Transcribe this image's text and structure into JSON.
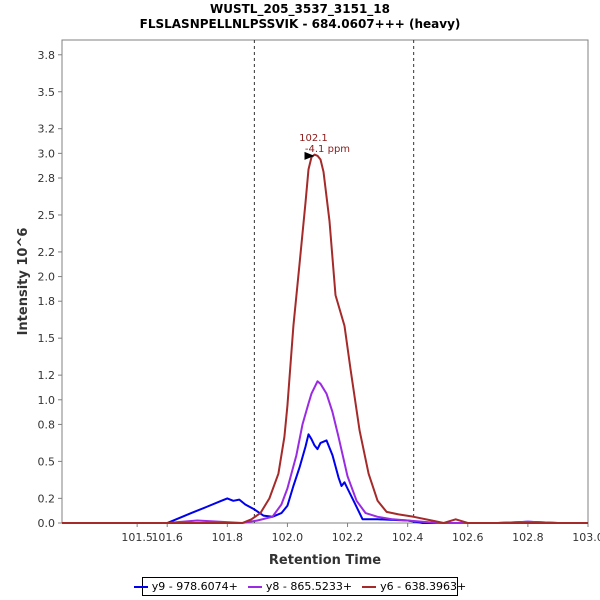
{
  "chart_data": {
    "type": "line",
    "title": "WUSTL_205_3537_3151_18",
    "subtitle": "FLSLASNPELLNLPSSVIK - 684.0607+++ (heavy)",
    "xlabel": "Retention Time",
    "ylabel": "Intensity 10^6",
    "xlim": [
      101.25,
      103.0
    ],
    "ylim": [
      0.0,
      3.92
    ],
    "x_ticks": [
      "101.5",
      "101.6",
      "101.8",
      "102.0",
      "102.2",
      "102.4",
      "102.6",
      "102.8",
      "103.0"
    ],
    "x_tick_values": [
      101.5,
      101.6,
      101.8,
      102.0,
      102.2,
      102.4,
      102.6,
      102.8,
      103.0
    ],
    "y_ticks": [
      "0.0",
      "0.2",
      "0.5",
      "0.8",
      "1.0",
      "1.2",
      "1.5",
      "1.8",
      "2.0",
      "2.2",
      "2.5",
      "2.8",
      "3.0",
      "3.2",
      "3.5",
      "3.8"
    ],
    "y_tick_values": [
      0.0,
      0.2,
      0.5,
      0.8,
      1.0,
      1.2,
      1.5,
      1.8,
      2.0,
      2.2,
      2.5,
      2.8,
      3.0,
      3.2,
      3.5,
      3.8
    ],
    "integration_bounds": [
      101.89,
      102.42
    ],
    "peak_annotation": {
      "x": 102.1,
      "y": 2.98,
      "label_rt": "102.1",
      "label_ppm": "-4.1 ppm"
    },
    "series": [
      {
        "name": "y9 - 978.6074+",
        "color": "#0000ee",
        "x": [
          101.25,
          101.6,
          101.63,
          101.68,
          101.73,
          101.78,
          101.8,
          101.82,
          101.84,
          101.86,
          101.89,
          101.92,
          101.95,
          101.98,
          102.0,
          102.02,
          102.04,
          102.06,
          102.07,
          102.08,
          102.09,
          102.1,
          102.11,
          102.12,
          102.13,
          102.15,
          102.17,
          102.18,
          102.19,
          102.2,
          102.22,
          102.25,
          102.3,
          102.4,
          102.45,
          102.7,
          102.8,
          102.9,
          103.0
        ],
        "y": [
          0.0,
          0.0,
          0.03,
          0.08,
          0.13,
          0.18,
          0.2,
          0.18,
          0.19,
          0.15,
          0.11,
          0.06,
          0.05,
          0.08,
          0.14,
          0.3,
          0.45,
          0.62,
          0.72,
          0.68,
          0.63,
          0.6,
          0.65,
          0.66,
          0.67,
          0.55,
          0.37,
          0.3,
          0.33,
          0.28,
          0.18,
          0.03,
          0.03,
          0.02,
          0.0,
          0.0,
          0.01,
          0.0,
          0.0
        ]
      },
      {
        "name": "y8 - 865.5233+",
        "color": "#9a2be2",
        "x": [
          101.25,
          101.6,
          101.7,
          101.85,
          101.9,
          101.95,
          101.98,
          102.0,
          102.03,
          102.05,
          102.07,
          102.08,
          102.1,
          102.11,
          102.13,
          102.15,
          102.17,
          102.2,
          102.23,
          102.26,
          102.3,
          102.35,
          102.4,
          102.5,
          102.7,
          102.8,
          102.9,
          103.0
        ],
        "y": [
          0.0,
          0.0,
          0.02,
          0.0,
          0.02,
          0.05,
          0.15,
          0.28,
          0.55,
          0.8,
          0.97,
          1.05,
          1.15,
          1.13,
          1.05,
          0.9,
          0.7,
          0.38,
          0.18,
          0.08,
          0.05,
          0.03,
          0.02,
          0.0,
          0.0,
          0.01,
          0.0,
          0.0
        ]
      },
      {
        "name": "y6 - 638.3963+",
        "color": "#a52a2a",
        "x": [
          101.25,
          101.8,
          101.85,
          101.88,
          101.91,
          101.94,
          101.97,
          101.99,
          102.0,
          102.02,
          102.04,
          102.06,
          102.07,
          102.08,
          102.09,
          102.1,
          102.11,
          102.12,
          102.14,
          102.16,
          102.19,
          102.21,
          102.24,
          102.27,
          102.3,
          102.33,
          102.37,
          102.42,
          102.48,
          102.52,
          102.56,
          102.6,
          103.0
        ],
        "y": [
          0.0,
          0.0,
          0.0,
          0.03,
          0.08,
          0.2,
          0.4,
          0.7,
          0.95,
          1.6,
          2.1,
          2.6,
          2.87,
          2.97,
          2.99,
          2.98,
          2.95,
          2.85,
          2.45,
          1.85,
          1.6,
          1.25,
          0.75,
          0.4,
          0.18,
          0.09,
          0.07,
          0.05,
          0.02,
          0.0,
          0.03,
          0.0,
          0.0
        ]
      }
    ],
    "legend_position": "bottom-center"
  }
}
